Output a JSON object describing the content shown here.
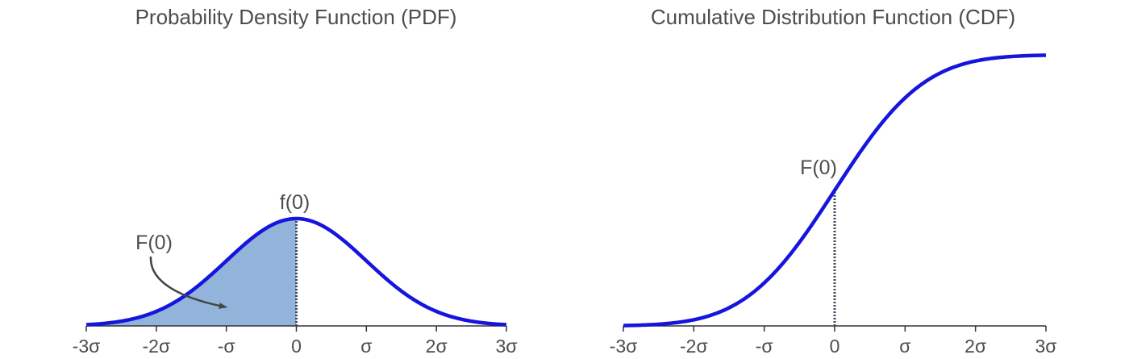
{
  "chart_data": [
    {
      "type": "area",
      "title": "Probability Density Function (PDF)",
      "xlabel": "",
      "ylabel": "",
      "x_range": [
        -3,
        3
      ],
      "x_ticks": [
        -3,
        -2,
        -1,
        0,
        1,
        2,
        3
      ],
      "x_tick_labels": [
        "-3σ",
        "-2σ",
        "-σ",
        "0",
        "σ",
        "2σ",
        "3σ"
      ],
      "y_visible": false,
      "grid": false,
      "series": [
        {
          "function": "normal_pdf",
          "mean": 0,
          "sd": 1,
          "color": "#1515dd"
        }
      ],
      "shaded_region": {
        "from": -3,
        "to": 0,
        "color": "#92b4da"
      },
      "marker_x": 0,
      "annotations": [
        {
          "text": "f(0)",
          "x": 0,
          "y": 0.399
        },
        {
          "text": "F(0)",
          "arrow_to_x": -1,
          "arrow_to_y": 0.07
        }
      ]
    },
    {
      "type": "line",
      "title": "Cumulative Distribution Function (CDF)",
      "xlabel": "",
      "ylabel": "",
      "x_range": [
        -3,
        3
      ],
      "x_ticks": [
        -3,
        -2,
        -1,
        0,
        1,
        2,
        3
      ],
      "x_tick_labels": [
        "-3σ",
        "-2σ",
        "-σ",
        "0",
        "σ",
        "2σ",
        "3σ"
      ],
      "y_visible": false,
      "grid": false,
      "series": [
        {
          "function": "normal_cdf",
          "mean": 0,
          "sd": 1,
          "color": "#1515dd"
        }
      ],
      "marker_x": 0,
      "annotations": [
        {
          "text": "F(0)",
          "x": 0,
          "y": 0.5
        }
      ]
    }
  ]
}
